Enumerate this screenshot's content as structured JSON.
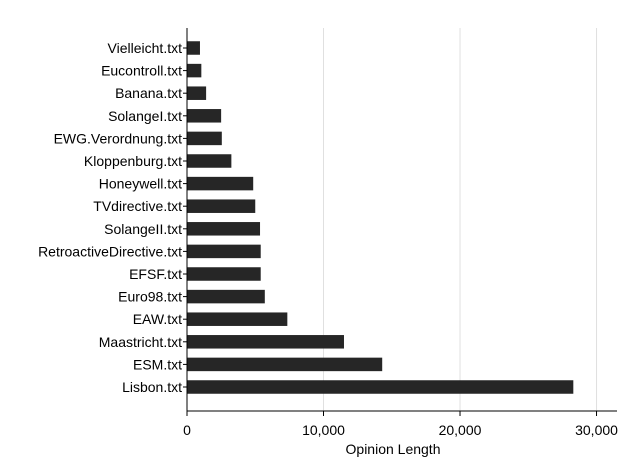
{
  "chart_data": {
    "type": "bar",
    "orientation": "horizontal",
    "categories": [
      "Vielleicht.txt",
      "Eucontroll.txt",
      "Banana.txt",
      "SolangeI.txt",
      "EWG.Verordnung.txt",
      "Kloppenburg.txt",
      "Honeywell.txt",
      "TVdirective.txt",
      "SolangeII.txt",
      "RetroactiveDirective.txt",
      "EFSF.txt",
      "Euro98.txt",
      "EAW.txt",
      "Maastricht.txt",
      "ESM.txt",
      "Lisbon.txt"
    ],
    "values": [
      950,
      1050,
      1400,
      2500,
      2550,
      3250,
      4850,
      5000,
      5350,
      5400,
      5400,
      5700,
      7350,
      11500,
      14300,
      28300
    ],
    "xlabel": "Opinion Length",
    "ylabel": "",
    "xlim": [
      0,
      31500
    ],
    "xticks": [
      0,
      10000,
      20000,
      30000
    ],
    "xtick_labels": [
      "0",
      "10,000",
      "20,000",
      "30,000"
    ],
    "grid": "vertical",
    "bar_color": "#262626",
    "grid_color": "#e0e0e0",
    "legend": "none"
  }
}
